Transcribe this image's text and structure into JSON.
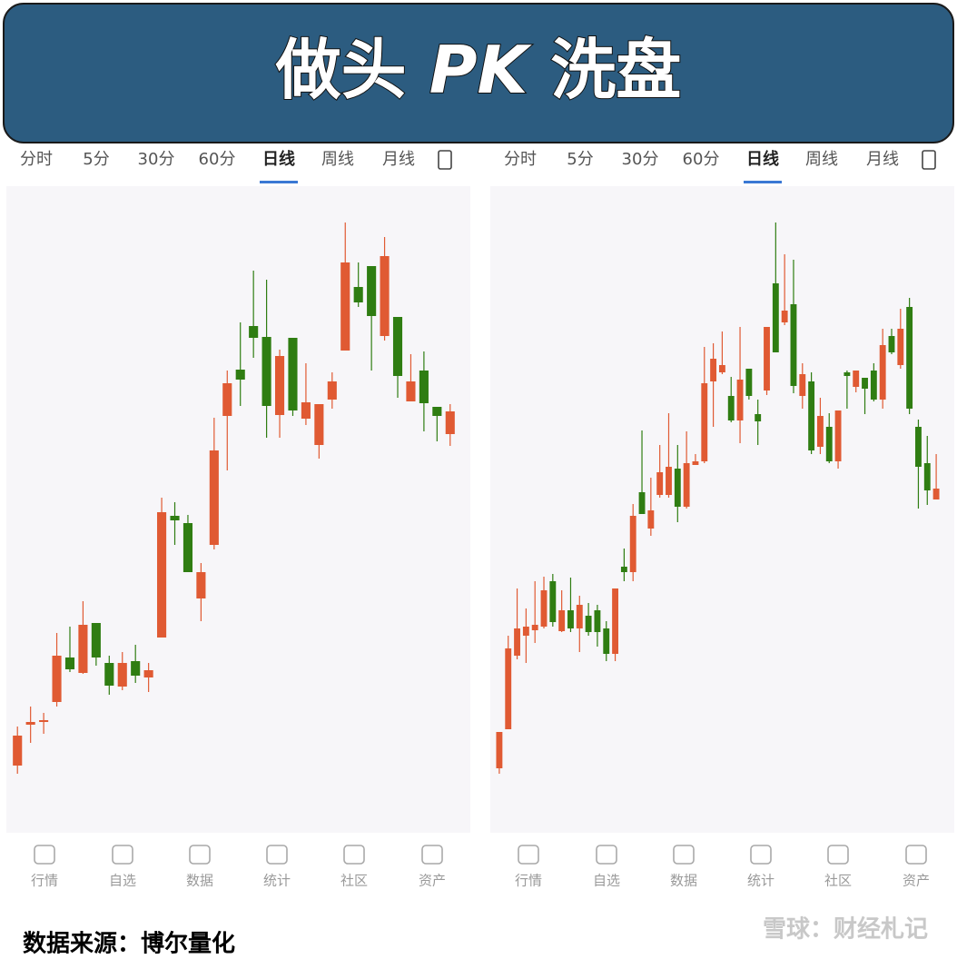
{
  "header": {
    "title": [
      "做头",
      "PK",
      "洗盘"
    ]
  },
  "tabs": [
    "分时",
    "5分",
    "30分",
    "60分",
    "日线",
    "周线",
    "月线"
  ],
  "active_tab": 4,
  "nav": [
    "行情",
    "自选",
    "数据",
    "统计",
    "社区",
    "资产"
  ],
  "footer": {
    "source": "数据来源：博尔量化",
    "watermark": "雪球：财经札记"
  },
  "chart_data": [
    {
      "type": "candlestick",
      "up_color": "#e05a33",
      "down_color": "#2f7d12",
      "open": [
        157,
        202,
        205,
        227,
        276,
        259,
        314,
        270,
        244,
        272,
        254,
        298,
        432,
        424,
        341,
        400,
        542,
        593,
        641,
        629,
        543,
        628,
        539,
        510,
        560,
        614,
        684,
        707,
        630,
        651,
        558,
        592,
        552,
        522
      ],
      "high": [
        200,
        222,
        215,
        303,
        310,
        338,
        314,
        278,
        282,
        290,
        270,
        452,
        447,
        433,
        380,
        540,
        592,
        645,
        702,
        692,
        615,
        628,
        600,
        555,
        590,
        755,
        711,
        707,
        739,
        651,
        610,
        613,
        552,
        555
      ],
      "low": [
        148,
        182,
        192,
        222,
        260,
        258,
        267,
        235,
        240,
        248,
        238,
        298,
        400,
        370,
        316,
        395,
        482,
        553,
        606,
        518,
        518,
        542,
        532,
        495,
        550,
        614,
        662,
        592,
        625,
        562,
        558,
        525,
        514,
        509
      ],
      "close": [
        190,
        205,
        207,
        278,
        263,
        312,
        276,
        245,
        270,
        256,
        262,
        436,
        427,
        370,
        370,
        504,
        578,
        582,
        628,
        553,
        608,
        548,
        557,
        555,
        580,
        711,
        667,
        652,
        718,
        586,
        580,
        556,
        542,
        547
      ]
    },
    {
      "type": "candlestick",
      "up_color": "#e05a33",
      "down_color": "#2f7d12",
      "open": [
        154,
        197,
        278,
        300,
        306,
        310,
        360,
        305,
        328,
        308,
        322,
        328,
        308,
        280,
        376,
        370,
        458,
        418,
        455,
        455,
        484,
        442,
        488,
        492,
        580,
        590,
        564,
        537,
        594,
        544,
        570,
        688,
        645,
        665,
        564,
        580,
        508,
        530,
        492,
        590,
        574,
        584,
        592,
        560,
        630,
        598,
        662,
        530,
        490,
        450
      ],
      "high": [
        194,
        300,
        352,
        330,
        360,
        365,
        368,
        350,
        364,
        344,
        336,
        334,
        316,
        352,
        396,
        445,
        526,
        474,
        510,
        545,
        510,
        525,
        500,
        618,
        622,
        635,
        585,
        640,
        594,
        560,
        640,
        755,
        720,
        714,
        600,
        590,
        562,
        545,
        548,
        592,
        592,
        584,
        600,
        638,
        638,
        660,
        672,
        538,
        520,
        500
      ],
      "low": [
        148,
        197,
        274,
        270,
        292,
        308,
        310,
        304,
        304,
        282,
        300,
        288,
        272,
        272,
        360,
        360,
        434,
        410,
        452,
        452,
        425,
        440,
        488,
        490,
        530,
        588,
        535,
        512,
        560,
        510,
        565,
        612,
        642,
        567,
        550,
        500,
        500,
        490,
        484,
        550,
        568,
        544,
        558,
        550,
        610,
        594,
        544,
        440,
        444,
        450
      ],
      "close": [
        194,
        286,
        308,
        310,
        312,
        350,
        315,
        328,
        308,
        334,
        304,
        304,
        280,
        352,
        370,
        432,
        434,
        438,
        480,
        486,
        442,
        490,
        492,
        578,
        605,
        598,
        537,
        582,
        564,
        536,
        640,
        612,
        658,
        575,
        588,
        504,
        542,
        492,
        548,
        586,
        592,
        572,
        560,
        620,
        612,
        638,
        550,
        486,
        460,
        462
      ]
    }
  ]
}
